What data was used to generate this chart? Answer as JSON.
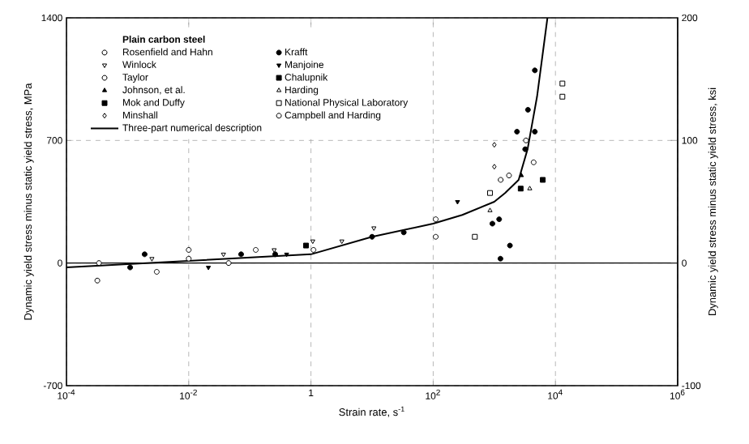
{
  "chart_data": {
    "type": "scatter",
    "xlabel": "Strain rate, s$^{-1}$",
    "ylabel": "Dynamic yield stress minus static yield stress, MPa",
    "y2label": "Dynamic yield stress minus static yield stress, ksi",
    "legend_title": "**Plain carbon steel**",
    "log": "x",
    "grid": true,
    "legend": "top left",
    "xlim": [
      0.0001,
      1000000
    ],
    "xticks": [
      {
        "value": 0.0001,
        "label": "10$^{-4}$"
      },
      {
        "value": 0.01,
        "label": "10$^{-2}$"
      },
      1,
      {
        "value": 100,
        "label": "10$^{2}$"
      },
      {
        "value": 10000,
        "label": "10$^{4}$"
      },
      {
        "value": 1000000,
        "label": "10$^{6}$"
      }
    ],
    "ylim": [
      -700,
      1400
    ],
    "yticks": [
      -700,
      0,
      700,
      1400
    ],
    "y2lim": [
      -100,
      200
    ],
    "y2ticks": [
      -100,
      0,
      100,
      200
    ],
    "ref_lines": [
      {
        "axis": "y",
        "value": 0,
        "color": "#000000",
        "line_style": "solid"
      }
    ],
    "series": [
      {
        "name": "Rosenfield and Hahn",
        "color": "#ffffff",
        "marker": "circle",
        "x": [
          0.00034,
          0.00032,
          0.01,
          0.01,
          0.125,
          110
        ],
        "values": [
          0,
          -100,
          75,
          25,
          75,
          250
        ]
      },
      {
        "name": "Krafft",
        "color": "#000000",
        "marker": "circle",
        "x": [
          0.0011,
          0.0019,
          0.072,
          0.26,
          10,
          33,
          930,
          1200,
          1800,
          1260,
          3200,
          2350,
          4600,
          3550,
          4600
        ],
        "values": [
          -25,
          50,
          50,
          50,
          150,
          175,
          225,
          250,
          100,
          25,
          650,
          750,
          750,
          875,
          1100
        ]
      },
      {
        "name": "Winlock",
        "color": "#ffffff",
        "marker": "triangle down",
        "x": [
          0.0025,
          0.037,
          0.25,
          1.07,
          3.2,
          10.7
        ],
        "values": [
          25,
          50,
          75,
          125,
          125,
          200
        ]
      },
      {
        "name": "Manjoine",
        "color": "#000000",
        "marker": "triangle down",
        "x": [
          0.021,
          0.4,
          250
        ],
        "values": [
          -25,
          50,
          350
        ]
      },
      {
        "name": "Taylor",
        "color": "#ffffff",
        "marker": "circle",
        "x": [
          0.003,
          0.045,
          1.1,
          110,
          1740,
          3300
        ],
        "values": [
          -50,
          0,
          75,
          150,
          500,
          700
        ]
      },
      {
        "name": "Chalupnik",
        "color": "#000000",
        "marker": "square",
        "x": [
          0.83
        ],
        "values": [
          100
        ]
      },
      {
        "name": "Johnson, et al.",
        "color": "#000000",
        "marker": "triangle",
        "x": [
          2770
        ],
        "values": [
          500
        ]
      },
      {
        "name": "Harding",
        "color": "#ffffff",
        "marker": "triangle",
        "x": [
          850,
          3800
        ],
        "values": [
          300,
          425
        ]
      },
      {
        "name": "Mok and Duffy",
        "color": "#000000",
        "marker": "square",
        "x": [
          2700,
          6200
        ],
        "values": [
          425,
          475
        ]
      },
      {
        "name": "National Physical Laboratory",
        "color": "#ffffff",
        "marker": "square",
        "x": [
          480,
          850,
          13000,
          13000
        ],
        "values": [
          150,
          400,
          1025,
          950
        ]
      },
      {
        "name": "Minshall",
        "color": "#ffffff",
        "marker": "diamond",
        "x": [
          1000,
          1000
        ],
        "values": [
          675,
          550
        ]
      },
      {
        "name": "Campbell and Harding",
        "color": "#ffffff",
        "marker": "circle",
        "x": [
          1270,
          4400
        ],
        "values": [
          475,
          575
        ]
      },
      {
        "name": "Three-part numerical description",
        "type": "line",
        "color": "#000000",
        "marker": "none",
        "line_style": "solid",
        "x": [
          0.0001,
          1,
          10,
          100,
          300,
          1000,
          1500,
          2500,
          3500,
          5000,
          7400
        ],
        "values": [
          -25,
          50,
          150,
          225,
          275,
          350,
          400,
          475,
          650,
          950,
          1400
        ]
      }
    ]
  }
}
